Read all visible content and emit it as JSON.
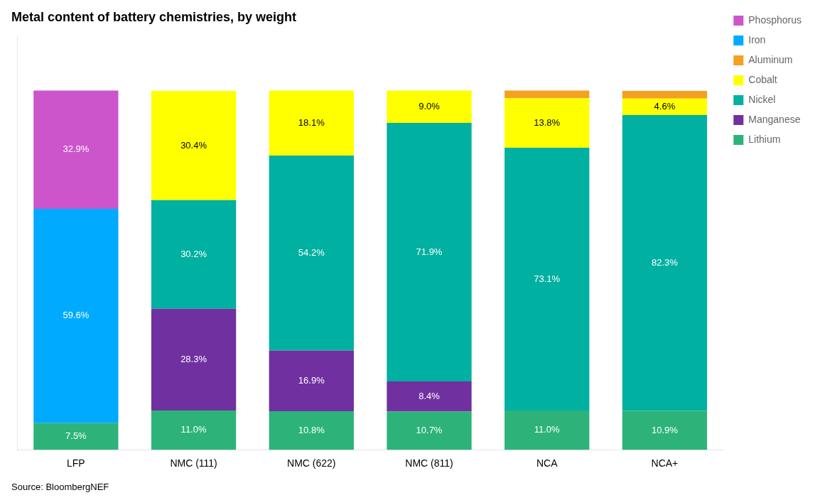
{
  "chart_data": {
    "type": "bar",
    "title": "Metal content of battery chemistries, by weight",
    "annotations": [
      "Source: BloombergNEF"
    ],
    "categories": [
      "LFP",
      "NMC (111)",
      "NMC (622)",
      "NMC (811)",
      "NCA",
      "NCA+"
    ],
    "series": [
      {
        "name": "Lithium",
        "color": "#2DB37A",
        "values": [
          7.5,
          11.0,
          10.8,
          10.7,
          11.0,
          10.9
        ],
        "value_labels": [
          "7.5%",
          "11.0%",
          "10.8%",
          "10.7%",
          "11.0%",
          "10.9%"
        ]
      },
      {
        "name": "Manganese",
        "color": "#7030A0",
        "values": [
          0.0,
          28.3,
          16.9,
          8.4,
          0.0,
          0.0
        ],
        "value_labels": [
          null,
          "28.3%",
          "16.9%",
          "8.4%",
          null,
          null
        ]
      },
      {
        "name": "Nickel",
        "color": "#00B0A0",
        "values": [
          0.0,
          30.2,
          54.2,
          71.9,
          73.1,
          82.3
        ],
        "value_labels": [
          null,
          "30.2%",
          "54.2%",
          "71.9%",
          "73.1%",
          "82.3%"
        ]
      },
      {
        "name": "Cobalt",
        "color": "#FFFF00",
        "values": [
          0.0,
          30.4,
          18.1,
          9.0,
          13.8,
          4.6
        ],
        "value_labels": [
          null,
          "30.4%",
          "18.1%",
          "9.0%",
          "13.8%",
          "4.6%"
        ]
      },
      {
        "name": "Aluminum",
        "color": "#F4A020",
        "values": [
          0.0,
          0.0,
          0.0,
          0.0,
          2.1,
          2.1
        ],
        "value_labels": [
          null,
          null,
          null,
          null,
          null,
          null
        ]
      },
      {
        "name": "Iron",
        "color": "#00AAFF",
        "values": [
          59.6,
          0.0,
          0.0,
          0.0,
          0.0,
          0.0
        ],
        "value_labels": [
          "59.6%",
          null,
          null,
          null,
          null,
          null
        ]
      },
      {
        "name": "Phosphorus",
        "color": "#CC55CC",
        "values": [
          32.9,
          0.0,
          0.0,
          0.0,
          0.0,
          0.0
        ],
        "value_labels": [
          "32.9%",
          null,
          null,
          null,
          null,
          null
        ]
      }
    ],
    "stacked": true,
    "data_labels": true,
    "ylim": [
      0,
      115
    ],
    "yticks": [],
    "tick_labels": "x",
    "grid": false,
    "legend": "right"
  }
}
